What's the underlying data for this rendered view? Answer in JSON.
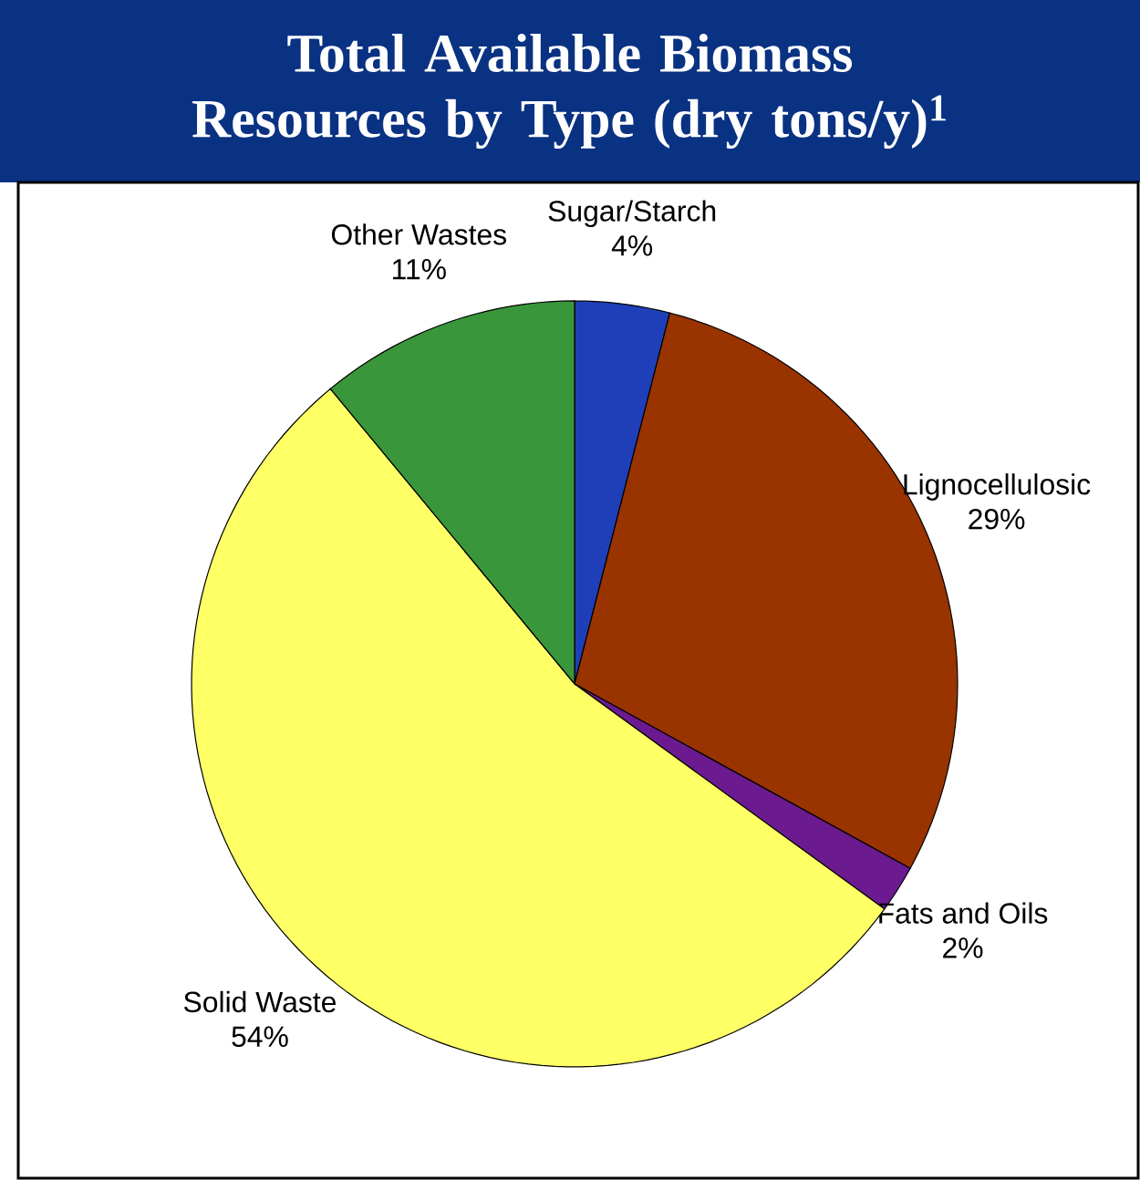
{
  "chart_data": {
    "type": "pie",
    "title": "Total Available Biomass Resources by Type (dry tons/y)$^{1}$",
    "categories": [
      "Sugar/Starch",
      "Lignocellulosic",
      "Fats and Oils",
      "Solid Waste",
      "Other Wastes"
    ],
    "values": [
      4,
      29,
      2,
      54,
      11
    ],
    "value_labels": [
      "4%",
      "29%",
      "2%",
      "54%",
      "11%"
    ],
    "colors": [
      "#1f3fb8",
      "#993300",
      "#6b1a8f",
      "#ffff66",
      "#3a963a"
    ]
  }
}
